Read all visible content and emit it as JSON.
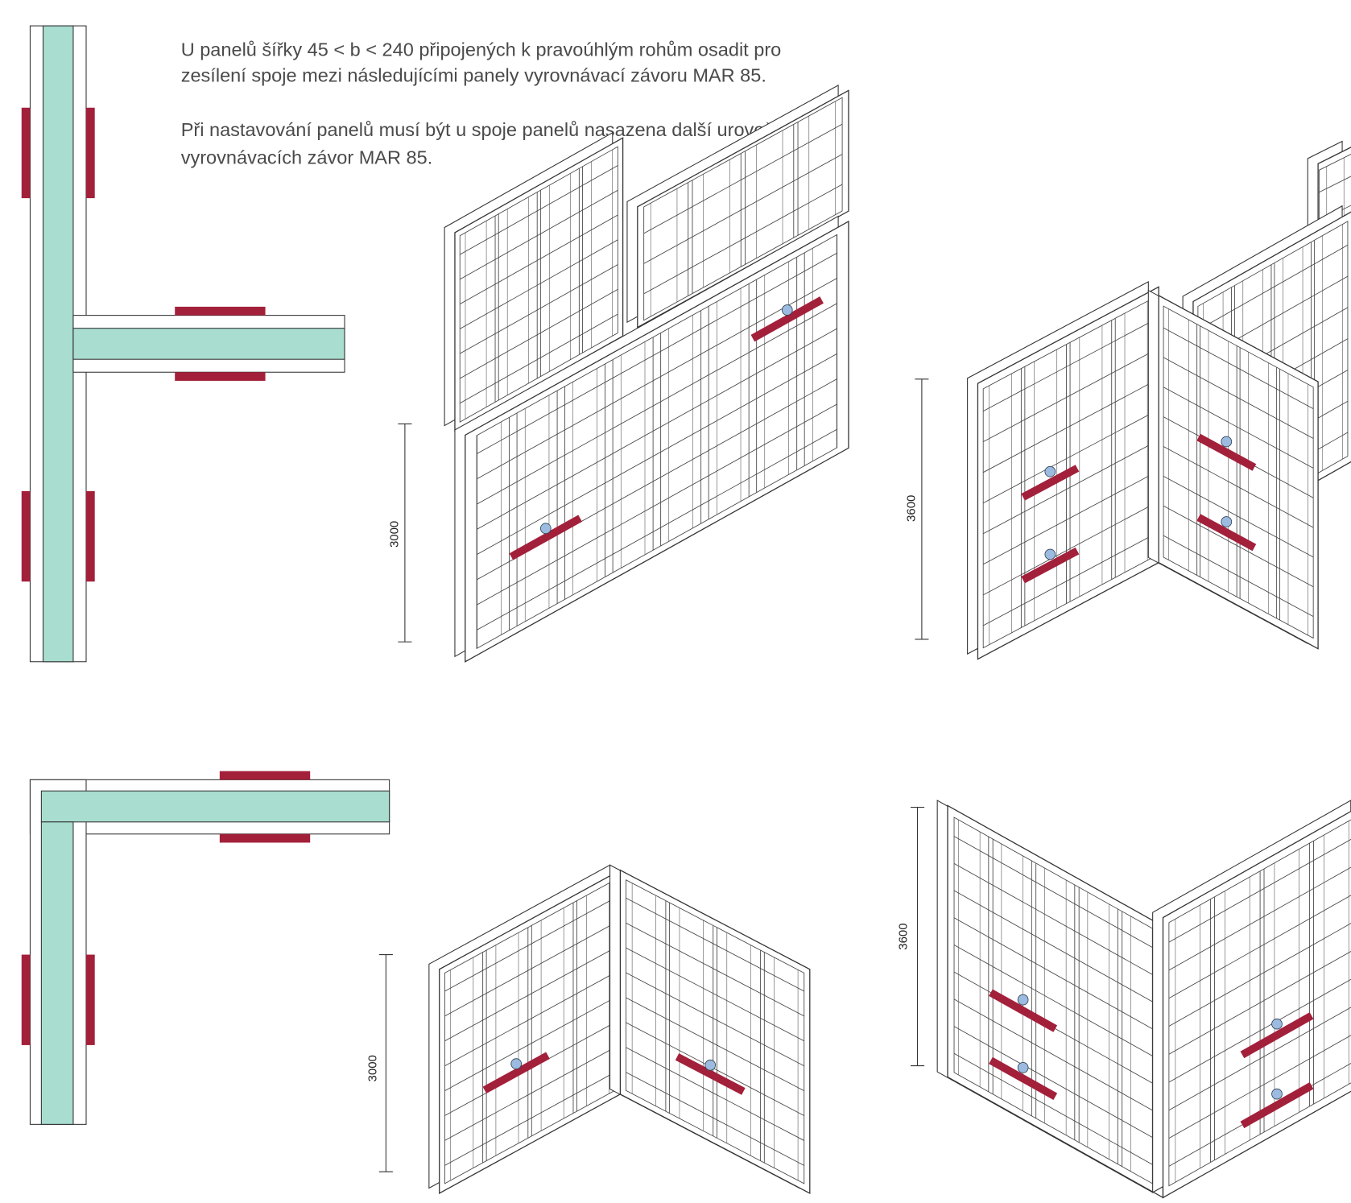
{
  "instructions": {
    "paragraphs": [
      [
        "U panelů šířky 45 < b < 240 připojených k pravoúhlým rohům osadit pro",
        "zesílení spoje mezi následujícími panely vyrovnávací závoru MAR 85."
      ],
      [
        "Při nastavování panelů musí být u spoje panelů nasazena další uroveň",
        "vyrovnávacích závor MAR 85."
      ]
    ]
  },
  "dimensions": [
    {
      "label": "3000"
    },
    {
      "label": "3600"
    },
    {
      "label": "3000"
    },
    {
      "label": "3600"
    }
  ]
}
